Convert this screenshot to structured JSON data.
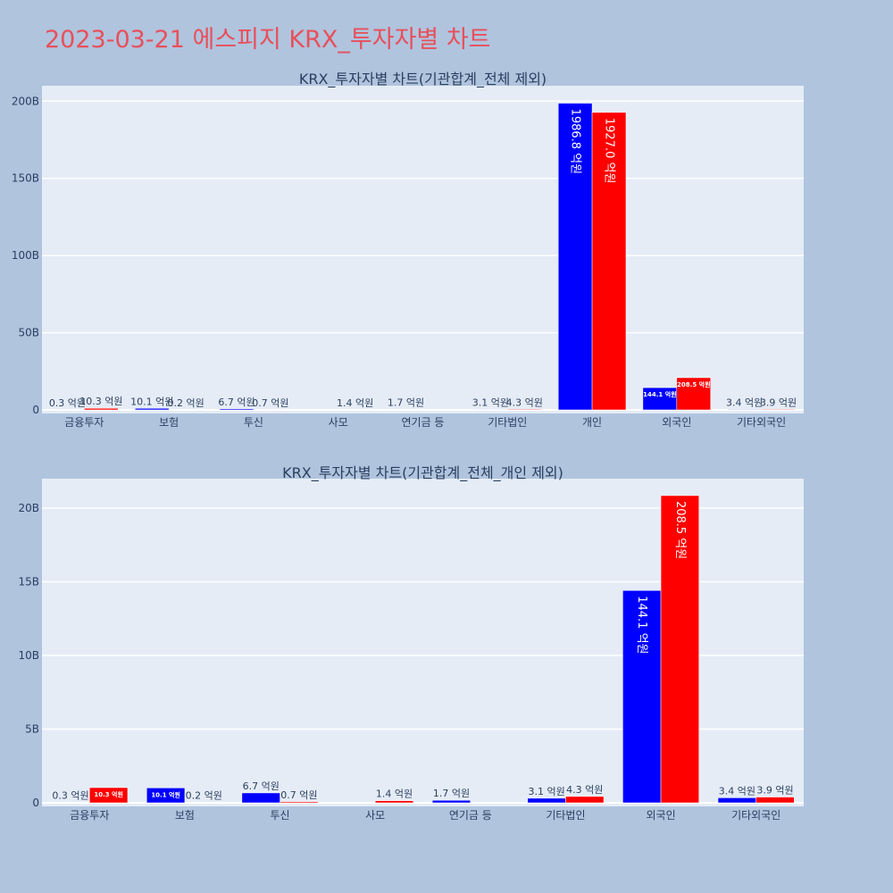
{
  "page": {
    "title": "2023-03-21 에스피지 KRX_투자자별 차트"
  },
  "colors": {
    "buy": "#0000ff",
    "sell": "#ff0000",
    "plot_bg": "#e5ecf6",
    "page_bg": "#b0c4de",
    "text": "#2a3f5f",
    "title": "#e8505b"
  },
  "chart_data": [
    {
      "type": "bar",
      "title": "KRX_투자자별 차트(기관합계_전체 제외)",
      "categories": [
        "금융투자",
        "보험",
        "투신",
        "사모",
        "연기금 등",
        "기타법인",
        "개인",
        "외국인",
        "기타외국인"
      ],
      "series": [
        {
          "color": "#0000ff",
          "values": [
            0.03,
            1.01,
            0.67,
            0,
            0.17,
            0.31,
            198.68,
            14.41,
            0.34
          ],
          "labels": [
            "0.3 억원",
            "10.1 억원",
            "6.7 억원",
            "",
            "1.7 억원",
            "3.1 억원",
            "1986.8 억원",
            "144.1 억원",
            "3.4 억원"
          ]
        },
        {
          "color": "#ff0000",
          "values": [
            1.03,
            0.02,
            0.07,
            0.14,
            0,
            0.43,
            192.7,
            20.85,
            0.39
          ],
          "labels": [
            "10.3 억원",
            "0.2 억원",
            "0.7 억원",
            "1.4 억원",
            "",
            "4.3 억원",
            "1927.0 억원",
            "208.5 억원",
            "3.9 억원"
          ]
        }
      ],
      "ylim": [
        0,
        210
      ],
      "yticks": [
        0,
        50,
        100,
        150,
        200
      ],
      "ytick_labels": [
        "0",
        "50B",
        "100B",
        "150B",
        "200B"
      ],
      "grid": true
    },
    {
      "type": "bar",
      "title": "KRX_투자자별 차트(기관합계_전체_개인 제외)",
      "categories": [
        "금융투자",
        "보험",
        "투신",
        "사모",
        "연기금 등",
        "기타법인",
        "외국인",
        "기타외국인"
      ],
      "series": [
        {
          "color": "#0000ff",
          "values": [
            0.03,
            1.01,
            0.67,
            0,
            0.17,
            0.31,
            14.41,
            0.34
          ],
          "labels": [
            "0.3 억원",
            "10.1 억원",
            "6.7 억원",
            "",
            "1.7 억원",
            "3.1 억원",
            "144.1 억원",
            "3.4 억원"
          ]
        },
        {
          "color": "#ff0000",
          "values": [
            1.03,
            0.02,
            0.07,
            0.14,
            0,
            0.43,
            20.85,
            0.39
          ],
          "labels": [
            "10.3 억원",
            "0.2 억원",
            "0.7 억원",
            "1.4 억원",
            "",
            "4.3 억원",
            "208.5 억원",
            "3.9 억원"
          ]
        }
      ],
      "ylim": [
        0,
        22
      ],
      "yticks": [
        0,
        5,
        10,
        15,
        20
      ],
      "ytick_labels": [
        "0",
        "5B",
        "10B",
        "15B",
        "20B"
      ],
      "grid": true
    }
  ]
}
